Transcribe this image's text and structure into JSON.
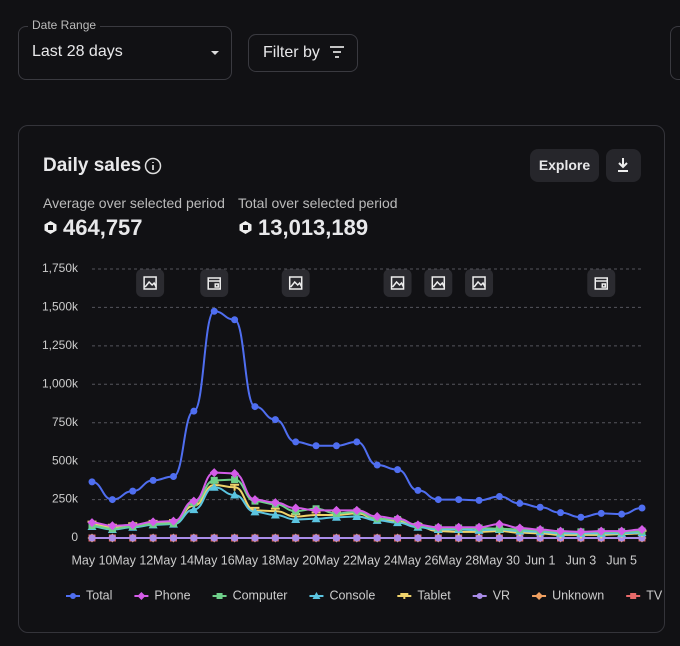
{
  "header": {
    "date_range_label": "Date Range",
    "date_range_value": "Last 28 days",
    "filter_button": "Filter by"
  },
  "card": {
    "title": "Daily sales",
    "explore_button": "Explore",
    "stats": [
      {
        "label": "Average over selected period",
        "value": "464,757"
      },
      {
        "label": "Total over selected period",
        "value": "13,013,189"
      }
    ]
  },
  "chart_data": {
    "type": "line",
    "categories": [
      "May 10",
      null,
      "May 12",
      null,
      "May 14",
      null,
      "May 16",
      null,
      "May 18",
      null,
      "May 20",
      null,
      "May 22",
      null,
      "May 24",
      null,
      "May 26",
      null,
      "May 28",
      null,
      "May 30",
      null,
      "Jun 1",
      null,
      "Jun 3",
      null,
      "Jun 5",
      null
    ],
    "ylim": [
      0,
      1750000
    ],
    "yticks": [
      0,
      {
        "value": 250000,
        "label": "250k"
      },
      {
        "value": 500000,
        "label": "500k"
      },
      {
        "value": 750000,
        "label": "750k"
      },
      {
        "value": 1000000,
        "label": "1,000k"
      },
      {
        "value": 1250000,
        "label": "1,250k"
      },
      {
        "value": 1500000,
        "label": "1,500k"
      },
      {
        "value": 1750000,
        "label": "1,750k"
      }
    ],
    "grid": true,
    "legend": "bottom",
    "series": [
      {
        "name": "Total",
        "color": "#4f6ef0",
        "marker": "circle",
        "values": [
          365000,
          250000,
          305000,
          375000,
          400000,
          825000,
          1475000,
          1420000,
          855000,
          770000,
          625000,
          600000,
          600000,
          625000,
          475000,
          445000,
          310000,
          250000,
          250000,
          245000,
          270000,
          225000,
          200000,
          165000,
          135000,
          160000,
          155000,
          195000
        ]
      },
      {
        "name": "Phone",
        "color": "#d45ce8",
        "marker": "diamond",
        "values": [
          100000,
          80000,
          85000,
          105000,
          110000,
          240000,
          425000,
          420000,
          250000,
          230000,
          195000,
          180000,
          180000,
          180000,
          140000,
          125000,
          85000,
          70000,
          70000,
          70000,
          90000,
          65000,
          55000,
          45000,
          40000,
          45000,
          45000,
          55000
        ]
      },
      {
        "name": "Computer",
        "color": "#6fd08a",
        "marker": "square",
        "values": [
          80000,
          60000,
          75000,
          90000,
          95000,
          230000,
          375000,
          380000,
          240000,
          220000,
          175000,
          190000,
          160000,
          170000,
          125000,
          120000,
          80000,
          65000,
          65000,
          65000,
          60000,
          55000,
          50000,
          40000,
          40000,
          40000,
          40000,
          45000
        ]
      },
      {
        "name": "Console",
        "color": "#5bc4e0",
        "marker": "triangle",
        "values": [
          75000,
          55000,
          70000,
          85000,
          90000,
          185000,
          330000,
          280000,
          170000,
          150000,
          120000,
          125000,
          135000,
          140000,
          115000,
          100000,
          70000,
          55000,
          55000,
          50000,
          55000,
          45000,
          40000,
          30000,
          30000,
          30000,
          30000,
          35000
        ]
      },
      {
        "name": "Tablet",
        "color": "#f0d36b",
        "marker": "tee",
        "values": [
          90000,
          70000,
          80000,
          95000,
          100000,
          210000,
          345000,
          330000,
          180000,
          175000,
          140000,
          150000,
          150000,
          160000,
          120000,
          110000,
          75000,
          45000,
          40000,
          40000,
          45000,
          35000,
          30000,
          20000,
          20000,
          20000,
          25000,
          30000
        ]
      },
      {
        "name": "VR",
        "color": "#a98ce8",
        "marker": "circle",
        "values": [
          0,
          0,
          0,
          0,
          0,
          0,
          0,
          0,
          0,
          0,
          0,
          0,
          0,
          0,
          0,
          0,
          0,
          0,
          0,
          0,
          0,
          0,
          0,
          0,
          0,
          0,
          0,
          0
        ]
      },
      {
        "name": "Unknown",
        "color": "#f0a060",
        "marker": "diamond",
        "values": [
          0,
          0,
          0,
          0,
          0,
          0,
          0,
          0,
          0,
          0,
          0,
          0,
          0,
          0,
          0,
          0,
          0,
          0,
          0,
          0,
          0,
          0,
          0,
          0,
          0,
          0,
          0,
          0
        ]
      },
      {
        "name": "TV",
        "color": "#e86a6a",
        "marker": "square",
        "values": [
          0,
          0,
          0,
          0,
          0,
          0,
          0,
          0,
          0,
          0,
          0,
          0,
          0,
          0,
          0,
          0,
          0,
          0,
          0,
          0,
          0,
          0,
          0,
          0,
          0,
          0,
          0,
          0
        ]
      }
    ]
  }
}
